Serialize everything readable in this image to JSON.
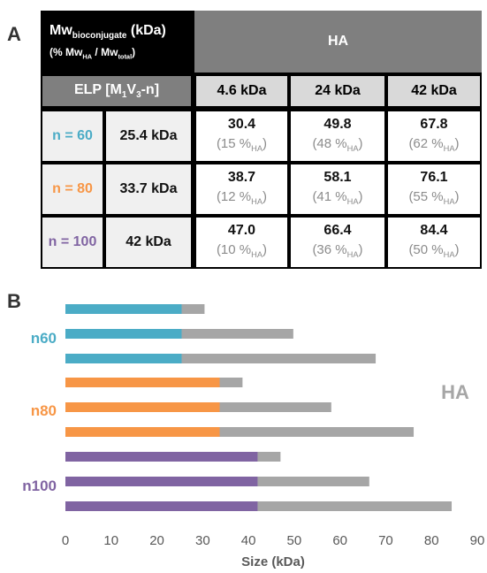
{
  "panel_a_label": "A",
  "panel_b_label": "B",
  "table": {
    "corner_header": {
      "line1_main": "Mw",
      "line1_sub": "bioconjugate",
      "line1_suffix": " (kDa)",
      "line2_prefix": "(% Mw",
      "line2_sub1": "HA",
      "line2_mid": " / Mw",
      "line2_sub2": "total",
      "line2_suffix": ")"
    },
    "ha_header": "HA",
    "elp_header": {
      "prefix": "ELP [M",
      "sub1": "1",
      "mid": "V",
      "sub2": "3",
      "suffix": "-n]"
    },
    "columns": [
      "4.6 kDa",
      "24 kDa",
      "42 kDa"
    ],
    "pct_sub": "HA",
    "rows": [
      {
        "label": "n = 60",
        "label_color": "#4bacc6",
        "mw": "25.4 kDa",
        "values": [
          "30.4",
          "49.8",
          "67.8"
        ],
        "pcts": [
          "(15 %",
          "(48 %",
          "(62 %"
        ]
      },
      {
        "label": "n = 80",
        "label_color": "#f79646",
        "mw": "33.7 kDa",
        "values": [
          "38.7",
          "58.1",
          "76.1"
        ],
        "pcts": [
          "(12 %",
          "(41 %",
          "(55 %"
        ]
      },
      {
        "label": "n = 100",
        "label_color": "#8064a2",
        "mw": "42 kDa",
        "values": [
          "47.0",
          "66.4",
          "84.4"
        ],
        "pcts": [
          "(10 %",
          "(36 %",
          "(50 %"
        ]
      }
    ],
    "pct_close": ")"
  },
  "chart_data": {
    "type": "bar",
    "orientation": "horizontal",
    "stacked": true,
    "xlabel": "Size (kDa)",
    "xlim": [
      0,
      90
    ],
    "xticks": [
      0,
      10,
      20,
      30,
      40,
      50,
      60,
      70,
      80,
      90
    ],
    "annotation": "HA",
    "groups": [
      {
        "name": "n60",
        "color": "#4bacc6",
        "elp": [
          25.4,
          25.4,
          25.4
        ],
        "totals": [
          30.4,
          49.8,
          67.8
        ]
      },
      {
        "name": "n80",
        "color": "#f79646",
        "elp": [
          33.7,
          33.7,
          33.7
        ],
        "totals": [
          38.7,
          58.1,
          76.1
        ]
      },
      {
        "name": "n100",
        "color": "#8064a2",
        "elp": [
          42.0,
          42.0,
          42.0
        ],
        "totals": [
          47.0,
          66.4,
          84.4
        ]
      }
    ],
    "ha_color": "#a6a6a6",
    "grid": false,
    "legend": "none"
  }
}
